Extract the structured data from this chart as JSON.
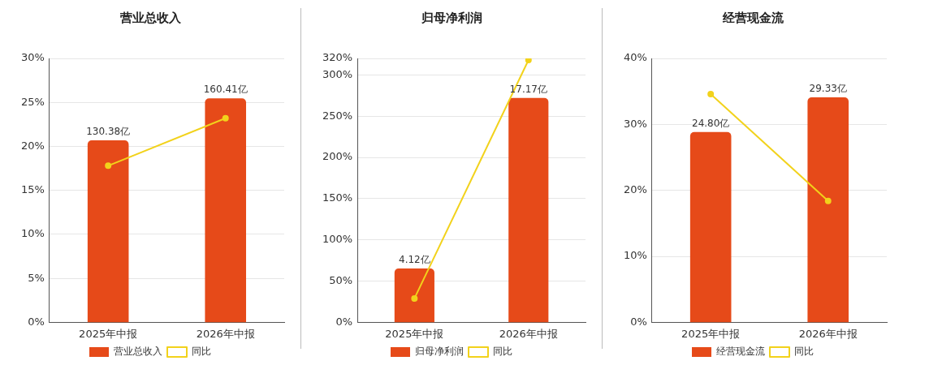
{
  "chart_data": [
    {
      "type": "bar",
      "title": "营业总收入",
      "categories": [
        "2025年中报",
        "2026年中报"
      ],
      "series": [
        {
          "name": "营业总收入",
          "color": "#e64a19",
          "values": [
            130.38,
            160.41
          ],
          "axis": "y2",
          "value_labels": [
            "130.38亿",
            "160.41亿"
          ]
        },
        {
          "type": "line",
          "name": "同比",
          "color": "#f2d21b",
          "values": [
            17.8,
            23.2
          ],
          "marker": "circle"
        }
      ],
      "ylim": [
        0,
        30
      ],
      "yticks": [
        {
          "value": 0,
          "label": "0%"
        },
        {
          "value": 5,
          "label": "5%"
        },
        {
          "value": 10,
          "label": "10%"
        },
        {
          "value": 15,
          "label": "15%"
        },
        {
          "value": 20,
          "label": "20%"
        },
        {
          "value": 25,
          "label": "25%"
        },
        {
          "value": 30,
          "label": "30%"
        }
      ],
      "y2lim": [
        0,
        189
      ],
      "grid": "y",
      "legend": "bottom"
    },
    {
      "type": "bar",
      "title": "归母净利润",
      "categories": [
        "2025年中报",
        "2026年中报"
      ],
      "series": [
        {
          "name": "归母净利润",
          "color": "#e64a19",
          "values": [
            4.12,
            17.17
          ],
          "axis": "y2",
          "value_labels": [
            "4.12亿",
            "17.17亿"
          ]
        },
        {
          "type": "line",
          "name": "同比",
          "color": "#f2d21b",
          "values": [
            29,
            318
          ],
          "marker": "circle"
        }
      ],
      "ylim": [
        0,
        320
      ],
      "yticks": [
        {
          "value": 0,
          "label": "0%"
        },
        {
          "value": 50,
          "label": "50%"
        },
        {
          "value": 100,
          "label": "100%"
        },
        {
          "value": 150,
          "label": "150%"
        },
        {
          "value": 200,
          "label": "200%"
        },
        {
          "value": 250,
          "label": "250%"
        },
        {
          "value": 300,
          "label": "300%"
        },
        {
          "value": 320,
          "label": "320%"
        }
      ],
      "y2lim": [
        0,
        20.2
      ],
      "grid": "y",
      "legend": "bottom"
    },
    {
      "type": "bar",
      "title": "经营现金流",
      "categories": [
        "2025年中报",
        "2026年中报"
      ],
      "series": [
        {
          "name": "经营现金流",
          "color": "#e64a19",
          "values": [
            24.8,
            29.33
          ],
          "axis": "y2",
          "value_labels": [
            "24.80亿",
            "29.33亿"
          ]
        },
        {
          "type": "line",
          "name": "同比",
          "color": "#f2d21b",
          "values": [
            34.6,
            18.4
          ],
          "marker": "circle"
        }
      ],
      "ylim": [
        0,
        40
      ],
      "yticks": [
        {
          "value": 0,
          "label": "0%"
        },
        {
          "value": 10,
          "label": "10%"
        },
        {
          "value": 20,
          "label": "20%"
        },
        {
          "value": 30,
          "label": "30%"
        },
        {
          "value": 40,
          "label": "40%"
        }
      ],
      "y2lim": [
        0,
        34.4
      ],
      "grid": "y",
      "legend": "bottom"
    }
  ]
}
